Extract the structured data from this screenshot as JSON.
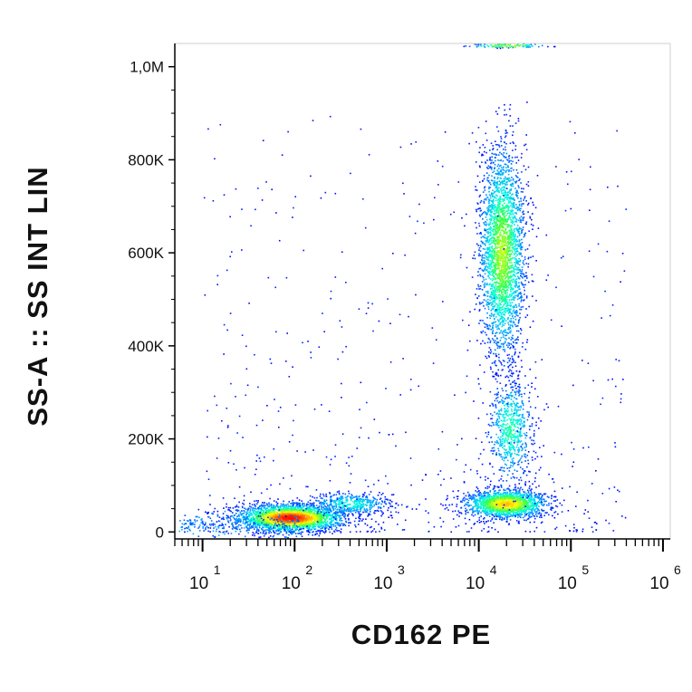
{
  "chart_data": {
    "type": "scatter",
    "subtype": "flow-cytometry-density-dot-plot",
    "xlabel": "CD162 PE",
    "ylabel": "SS-A :: SS INT LIN",
    "x_scale": "log",
    "y_scale": "linear",
    "xlim": [
      5,
      1200000
    ],
    "ylim": [
      -15000,
      1050000
    ],
    "x_ticks": [
      {
        "value": 10,
        "base": "10",
        "exp": "1"
      },
      {
        "value": 100,
        "base": "10",
        "exp": "2"
      },
      {
        "value": 1000,
        "base": "10",
        "exp": "3"
      },
      {
        "value": 10000,
        "base": "10",
        "exp": "4"
      },
      {
        "value": 100000,
        "base": "10",
        "exp": "5"
      },
      {
        "value": 1000000,
        "base": "10",
        "exp": "6"
      }
    ],
    "y_ticks": [
      {
        "value": 0,
        "label": "0"
      },
      {
        "value": 200000,
        "label": "200K"
      },
      {
        "value": 400000,
        "label": "400K"
      },
      {
        "value": 600000,
        "label": "600K"
      },
      {
        "value": 800000,
        "label": "800K"
      },
      {
        "value": 1000000,
        "label": "1,0M"
      }
    ],
    "grid": false,
    "legend": "none",
    "color_scale": [
      "#0000ff",
      "#00a0ff",
      "#00ffe0",
      "#40ff40",
      "#ffff00",
      "#ff8000",
      "#ff0000"
    ],
    "populations": [
      {
        "x_center": 90,
        "y_center": 30000,
        "x_spread_decades": 0.28,
        "y_spread": 14000,
        "count": 2600,
        "peak_density": 1.0
      },
      {
        "x_center": 400,
        "y_center": 60000,
        "x_spread_decades": 0.22,
        "y_spread": 12000,
        "count": 450,
        "peak_density": 0.35
      },
      {
        "x_center": 18000,
        "y_center": 600000,
        "x_spread_decades": 0.12,
        "y_spread": 110000,
        "count": 2800,
        "peak_density": 0.6
      },
      {
        "x_center": 22000,
        "y_center": 220000,
        "x_spread_decades": 0.12,
        "y_spread": 55000,
        "count": 700,
        "peak_density": 0.4
      },
      {
        "x_center": 20000,
        "y_center": 60000,
        "x_spread_decades": 0.22,
        "y_spread": 15000,
        "count": 1700,
        "peak_density": 0.75
      },
      {
        "x_center": 20000,
        "y_center": 1045000,
        "x_spread_decades": 0.2,
        "y_spread": 2000,
        "count": 120,
        "peak_density": 0.7
      }
    ]
  }
}
